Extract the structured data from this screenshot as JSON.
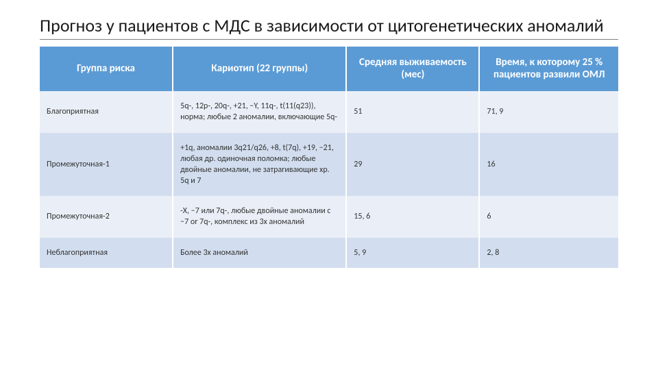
{
  "title": "Прогноз у пациентов с МДС в зависимости от цитогенетических аномалий",
  "table": {
    "header_bg": "#5b9bd5",
    "header_fg": "#ffffff",
    "row_odd_bg": "#eaeff7",
    "row_even_bg": "#d2deef",
    "columns": [
      {
        "label": "Группа риска",
        "width": "23%"
      },
      {
        "label": "Кариотип (22 группы)",
        "width": "30%"
      },
      {
        "label": "Средняя выживаемость (мес)",
        "width": "23%"
      },
      {
        "label": "Время, к которому 25 % пациентов развили ОМЛ",
        "width": "24%"
      }
    ],
    "rows": [
      {
        "group": "Благоприятная",
        "karyotype": "5q-, 12p-, 20q-, +21, −Y, 11q-, t(11(q23)), норма; любые 2 аномалии, включающие 5q-",
        "survival": "51",
        "time25": "71, 9"
      },
      {
        "group": "Промежуточная-1",
        "karyotype": "+1q, аномалии 3q21/q26, +8, t(7q), +19, −21, любая др. одиночная поломка; любые двойные аномалии, не затрагивающие хр. 5q и 7",
        "survival": "29",
        "time25": "16"
      },
      {
        "group": "Промежуточная-2",
        "karyotype": "-X, −7 или 7q-, любые двойные аномалии с −7 or 7q-, комплекс из 3х аномалий",
        "survival": "15, 6",
        "time25": "6"
      },
      {
        "group": "Неблагоприятная",
        "karyotype": "Более 3х аномалий",
        "survival": "5, 9",
        "time25": "2, 8"
      }
    ]
  }
}
